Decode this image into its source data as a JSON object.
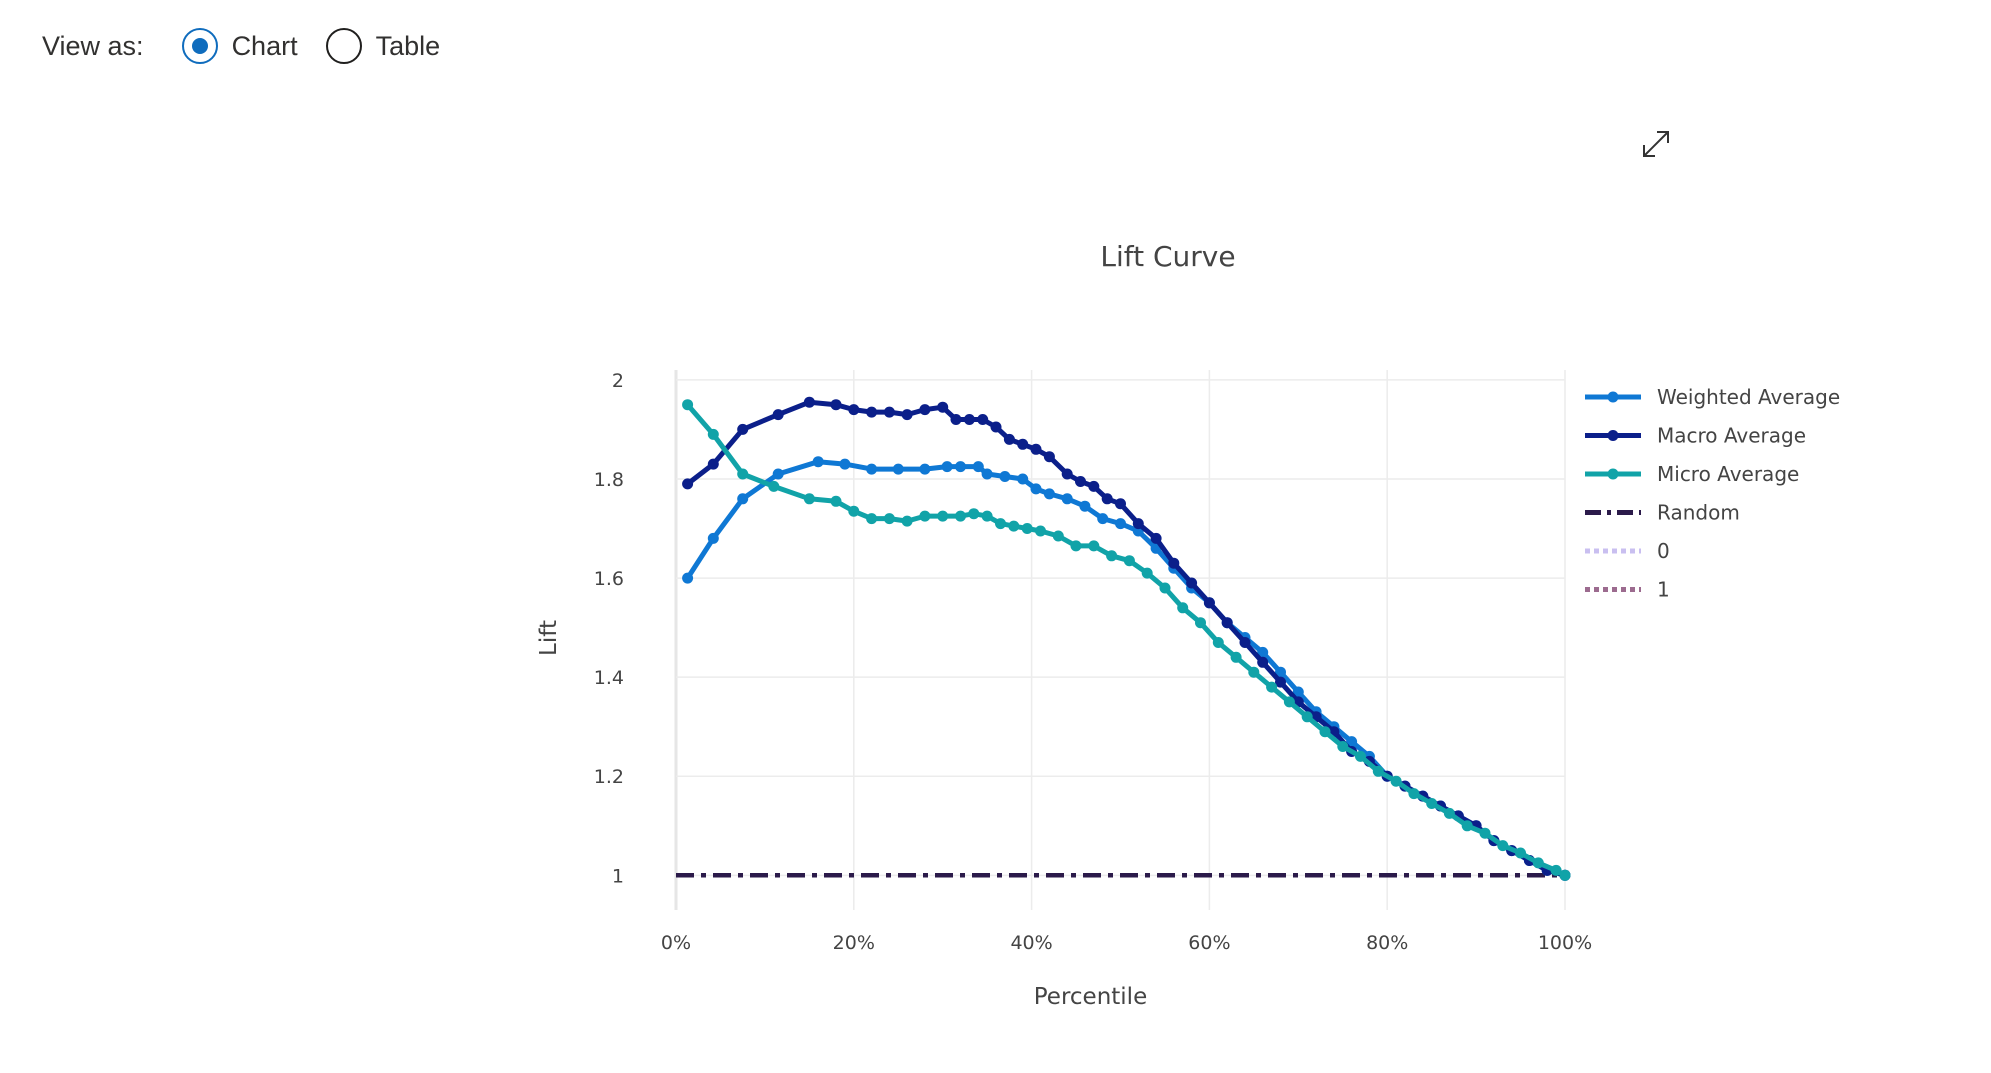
{
  "view_toggle": {
    "label": "View as:",
    "options": [
      {
        "label": "Chart",
        "checked": true
      },
      {
        "label": "Table",
        "checked": false
      }
    ]
  },
  "toolbar": {
    "expand_icon": "expand-diagonal-icon"
  },
  "chart_data": {
    "type": "line",
    "title": "Lift Curve",
    "xlabel": "Percentile",
    "ylabel": "Lift",
    "xlim": [
      0,
      100
    ],
    "ylim": [
      0.93,
      2.02
    ],
    "x_ticks": [
      0,
      20,
      40,
      60,
      80,
      100
    ],
    "x_tick_labels": [
      "0%",
      "20%",
      "40%",
      "60%",
      "80%",
      "100%"
    ],
    "y_ticks": [
      1,
      1.2,
      1.4,
      1.6,
      1.8,
      2
    ],
    "y_tick_labels": [
      "1",
      "1.2",
      "1.4",
      "1.6",
      "1.8",
      "2"
    ],
    "grid": true,
    "legend_position": "right",
    "series": [
      {
        "name": "Weighted Average",
        "color": "#0f78d4",
        "style": "solid-markers",
        "points": [
          [
            1.3,
            1.6
          ],
          [
            4.2,
            1.68
          ],
          [
            7.5,
            1.76
          ],
          [
            11.5,
            1.81
          ],
          [
            16,
            1.835
          ],
          [
            19,
            1.83
          ],
          [
            22,
            1.82
          ],
          [
            25,
            1.82
          ],
          [
            28,
            1.82
          ],
          [
            30.5,
            1.825
          ],
          [
            32,
            1.825
          ],
          [
            34,
            1.825
          ],
          [
            35,
            1.81
          ],
          [
            37,
            1.805
          ],
          [
            39,
            1.8
          ],
          [
            40.5,
            1.78
          ],
          [
            42,
            1.77
          ],
          [
            44,
            1.76
          ],
          [
            46,
            1.745
          ],
          [
            48,
            1.72
          ],
          [
            50,
            1.71
          ],
          [
            52,
            1.695
          ],
          [
            54,
            1.66
          ],
          [
            56,
            1.62
          ],
          [
            58,
            1.58
          ],
          [
            60,
            1.55
          ],
          [
            62,
            1.51
          ],
          [
            64,
            1.48
          ],
          [
            66,
            1.45
          ],
          [
            68,
            1.41
          ],
          [
            70,
            1.37
          ],
          [
            72,
            1.33
          ],
          [
            74,
            1.3
          ],
          [
            76,
            1.27
          ],
          [
            78,
            1.24
          ],
          [
            80,
            1.2
          ],
          [
            82,
            1.18
          ],
          [
            84,
            1.16
          ],
          [
            86,
            1.14
          ],
          [
            88,
            1.12
          ],
          [
            90,
            1.1
          ],
          [
            92,
            1.07
          ],
          [
            94,
            1.05
          ],
          [
            96,
            1.03
          ],
          [
            98,
            1.01
          ],
          [
            100,
            1.0
          ]
        ]
      },
      {
        "name": "Macro Average",
        "color": "#0b1f8a",
        "style": "solid-markers",
        "points": [
          [
            1.3,
            1.79
          ],
          [
            4.2,
            1.83
          ],
          [
            7.5,
            1.9
          ],
          [
            11.5,
            1.93
          ],
          [
            15,
            1.955
          ],
          [
            18,
            1.95
          ],
          [
            20,
            1.94
          ],
          [
            22,
            1.935
          ],
          [
            24,
            1.935
          ],
          [
            26,
            1.93
          ],
          [
            28,
            1.94
          ],
          [
            30,
            1.945
          ],
          [
            31.5,
            1.92
          ],
          [
            33,
            1.92
          ],
          [
            34.5,
            1.92
          ],
          [
            36,
            1.905
          ],
          [
            37.5,
            1.88
          ],
          [
            39,
            1.87
          ],
          [
            40.5,
            1.86
          ],
          [
            42,
            1.845
          ],
          [
            44,
            1.81
          ],
          [
            45.5,
            1.795
          ],
          [
            47,
            1.785
          ],
          [
            48.5,
            1.76
          ],
          [
            50,
            1.75
          ],
          [
            52,
            1.71
          ],
          [
            54,
            1.68
          ],
          [
            56,
            1.63
          ],
          [
            58,
            1.59
          ],
          [
            60,
            1.55
          ],
          [
            62,
            1.51
          ],
          [
            64,
            1.47
          ],
          [
            66,
            1.43
          ],
          [
            68,
            1.39
          ],
          [
            70,
            1.35
          ],
          [
            72,
            1.32
          ],
          [
            74,
            1.29
          ],
          [
            76,
            1.25
          ],
          [
            78,
            1.23
          ],
          [
            80,
            1.2
          ],
          [
            82,
            1.18
          ],
          [
            84,
            1.16
          ],
          [
            86,
            1.14
          ],
          [
            88,
            1.12
          ],
          [
            90,
            1.1
          ],
          [
            92,
            1.07
          ],
          [
            94,
            1.05
          ],
          [
            96,
            1.03
          ],
          [
            98,
            1.01
          ],
          [
            100,
            1.0
          ]
        ]
      },
      {
        "name": "Micro Average",
        "color": "#11a3a8",
        "style": "solid-markers",
        "points": [
          [
            1.3,
            1.95
          ],
          [
            4.2,
            1.89
          ],
          [
            7.5,
            1.81
          ],
          [
            11,
            1.785
          ],
          [
            15,
            1.76
          ],
          [
            18,
            1.755
          ],
          [
            20,
            1.735
          ],
          [
            22,
            1.72
          ],
          [
            24,
            1.72
          ],
          [
            26,
            1.715
          ],
          [
            28,
            1.725
          ],
          [
            30,
            1.725
          ],
          [
            32,
            1.725
          ],
          [
            33.5,
            1.73
          ],
          [
            35,
            1.725
          ],
          [
            36.5,
            1.71
          ],
          [
            38,
            1.705
          ],
          [
            39.5,
            1.7
          ],
          [
            41,
            1.695
          ],
          [
            43,
            1.685
          ],
          [
            45,
            1.665
          ],
          [
            47,
            1.665
          ],
          [
            49,
            1.645
          ],
          [
            51,
            1.635
          ],
          [
            53,
            1.61
          ],
          [
            55,
            1.58
          ],
          [
            57,
            1.54
          ],
          [
            59,
            1.51
          ],
          [
            61,
            1.47
          ],
          [
            63,
            1.44
          ],
          [
            65,
            1.41
          ],
          [
            67,
            1.38
          ],
          [
            69,
            1.35
          ],
          [
            71,
            1.32
          ],
          [
            73,
            1.29
          ],
          [
            75,
            1.26
          ],
          [
            77,
            1.24
          ],
          [
            79,
            1.21
          ],
          [
            81,
            1.19
          ],
          [
            83,
            1.165
          ],
          [
            85,
            1.145
          ],
          [
            87,
            1.125
          ],
          [
            89,
            1.1
          ],
          [
            91,
            1.085
          ],
          [
            93,
            1.06
          ],
          [
            95,
            1.045
          ],
          [
            97,
            1.025
          ],
          [
            99,
            1.01
          ],
          [
            100,
            1.0
          ]
        ]
      },
      {
        "name": "Random",
        "color": "#2b1a4a",
        "style": "dashdot",
        "points": [
          [
            0,
            1.0
          ],
          [
            100,
            1.0
          ]
        ]
      },
      {
        "name": "0",
        "color": "#c9bff0",
        "style": "dotted",
        "legend_only": true,
        "points": []
      },
      {
        "name": "1",
        "color": "#9c6b8f",
        "style": "dotted",
        "legend_only": true,
        "points": []
      }
    ]
  }
}
